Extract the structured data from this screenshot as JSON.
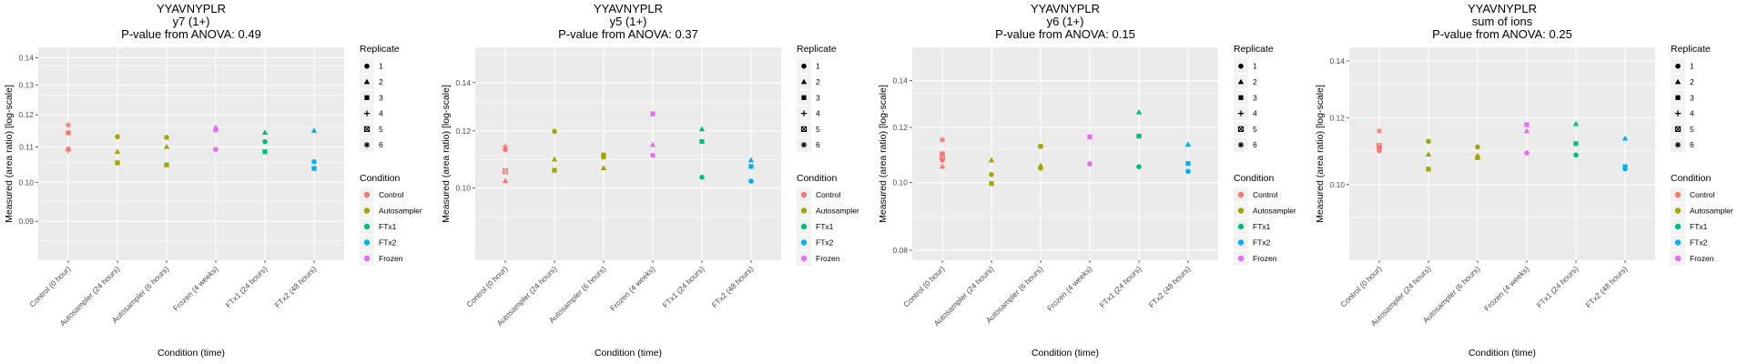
{
  "colors": {
    "Control": "#F8766D",
    "Autosampler": "#A3A500",
    "FTx1": "#00BF7D",
    "FTx2": "#00B0F6",
    "Frozen": "#E76BF3",
    "panel_bg": "#EBEBEB",
    "grid": "#FFFFFF"
  },
  "chart_data": [
    {
      "type": "scatter",
      "title": [
        "YYAVNYPLR",
        "y7 (1+)",
        "P-value from ANOVA: 0.49"
      ],
      "xlabel": "Condition (time)",
      "ylabel": "Measured (area ratio) [log-scale]",
      "yscale": "log",
      "ylim": [
        0.081,
        0.144
      ],
      "yticks": [
        0.09,
        0.1,
        0.11,
        0.12,
        0.13,
        0.14
      ],
      "ytick_labels": [
        "0.09",
        "0.10",
        "0.11",
        "0.12",
        "0.13",
        "0.14"
      ],
      "categories": [
        "Control (0 hour)",
        "Autosampler (24 hours)",
        "Autosampler (6 hours)",
        "Frozen (4 weeks)",
        "FTx1 (24 hours)",
        "FTx2 (48 hours)"
      ],
      "series": [
        {
          "category": "Control (0 hour)",
          "condition": "Control",
          "replicates": [
            6,
            3,
            1,
            4
          ],
          "values": [
            0.1167,
            0.1143,
            0.1094,
            0.1089
          ]
        },
        {
          "category": "Autosampler (24 hours)",
          "condition": "Autosampler",
          "replicates": [
            1,
            2,
            3
          ],
          "values": [
            0.1131,
            0.1086,
            0.1054
          ]
        },
        {
          "category": "Autosampler (6 hours)",
          "condition": "Autosampler",
          "replicates": [
            1,
            2,
            3
          ],
          "values": [
            0.1129,
            0.1101,
            0.1048
          ]
        },
        {
          "category": "Frozen (4 weeks)",
          "condition": "Frozen",
          "replicates": [
            2,
            3,
            1
          ],
          "values": [
            0.116,
            0.1152,
            0.1093
          ]
        },
        {
          "category": "FTx1 (24 hours)",
          "condition": "FTx1",
          "replicates": [
            2,
            1,
            3
          ],
          "values": [
            0.1144,
            0.1116,
            0.1086
          ]
        },
        {
          "category": "FTx2 (48 hours)",
          "condition": "FTx2",
          "replicates": [
            2,
            1,
            3
          ],
          "values": [
            0.115,
            0.1057,
            0.1038
          ]
        }
      ]
    },
    {
      "type": "scatter",
      "title": [
        "YYAVNYPLR",
        "y5 (1+)",
        "P-value from ANOVA: 0.37"
      ],
      "xlabel": "Condition (time)",
      "ylabel": "Measured (area ratio) [log-scale]",
      "yscale": "log",
      "ylim": [
        0.0794,
        0.1567
      ],
      "yticks": [
        0.1,
        0.12,
        0.14
      ],
      "ytick_labels": [
        "0.10",
        "0.12",
        "0.14"
      ],
      "categories": [
        "Control (0 hour)",
        "Autosampler (24 hours)",
        "Autosampler (6 hours)",
        "Frozen (4 weeks)",
        "FTx1 (24 hours)",
        "FTx2 (48 hours)"
      ],
      "series": [
        {
          "category": "Control (0 hour)",
          "condition": "Control",
          "replicates": [
            4,
            1,
            5,
            2
          ],
          "values": [
            0.1142,
            0.1131,
            0.1055,
            0.1023
          ]
        },
        {
          "category": "Autosampler (24 hours)",
          "condition": "Autosampler",
          "replicates": [
            1,
            2,
            3
          ],
          "values": [
            0.1198,
            0.1096,
            0.1058
          ]
        },
        {
          "category": "Autosampler (6 hours)",
          "condition": "Autosampler",
          "replicates": [
            1,
            3,
            2
          ],
          "values": [
            0.1112,
            0.1104,
            0.1066
          ]
        },
        {
          "category": "Frozen (4 weeks)",
          "condition": "Frozen",
          "replicates": [
            3,
            2,
            1
          ],
          "values": [
            0.1267,
            0.1148,
            0.111
          ]
        },
        {
          "category": "FTx1 (24 hours)",
          "condition": "FTx1",
          "replicates": [
            2,
            3,
            1
          ],
          "values": [
            0.1207,
            0.116,
            0.1035
          ]
        },
        {
          "category": "FTx2 (48 hours)",
          "condition": "FTx2",
          "replicates": [
            2,
            3,
            1
          ],
          "values": [
            0.1093,
            0.1071,
            0.1022
          ]
        }
      ]
    },
    {
      "type": "scatter",
      "title": [
        "YYAVNYPLR",
        "y6 (1+)",
        "P-value from ANOVA: 0.15"
      ],
      "xlabel": "Condition (time)",
      "ylabel": "Measured (area ratio) [log-scale]",
      "yscale": "log",
      "ylim": [
        0.0774,
        0.1563
      ],
      "yticks": [
        0.08,
        0.1,
        0.12,
        0.14
      ],
      "ytick_labels": [
        "0.08",
        "0.10",
        "0.12",
        "0.14"
      ],
      "categories": [
        "Control (0 hour)",
        "Autosampler (24 hours)",
        "Autosampler (6 hours)",
        "Frozen (4 weeks)",
        "FTx1 (24 hours)",
        "FTx2 (48 hours)"
      ],
      "series": [
        {
          "category": "Control (0 hour)",
          "condition": "Control",
          "replicates": [
            6,
            3,
            5,
            1,
            2
          ],
          "values": [
            0.1152,
            0.11,
            0.1088,
            0.1077,
            0.1055
          ]
        },
        {
          "category": "Autosampler (24 hours)",
          "condition": "Autosampler",
          "replicates": [
            2,
            1,
            3
          ],
          "values": [
            0.1077,
            0.1027,
            0.0997
          ]
        },
        {
          "category": "Autosampler (6 hours)",
          "condition": "Autosampler",
          "replicates": [
            3,
            2,
            1
          ],
          "values": [
            0.1127,
            0.1058,
            0.1049
          ]
        },
        {
          "category": "Frozen (4 weeks)",
          "condition": "Frozen",
          "replicates": [
            3,
            1
          ],
          "values": [
            0.1163,
            0.1064
          ]
        },
        {
          "category": "FTx1 (24 hours)",
          "condition": "FTx1",
          "replicates": [
            2,
            3,
            1
          ],
          "values": [
            0.1262,
            0.1166,
            0.1054
          ]
        },
        {
          "category": "FTx2 (48 hours)",
          "condition": "FTx2",
          "replicates": [
            2,
            3,
            1
          ],
          "values": [
            0.1135,
            0.1065,
            0.1038
          ]
        }
      ]
    },
    {
      "type": "scatter",
      "title": [
        "YYAVNYPLR",
        "sum of ions",
        "P-value from ANOVA: 0.25"
      ],
      "xlabel": "Condition (time)",
      "ylabel": "Measured (area ratio) [log-scale]",
      "yscale": "log",
      "ylim": [
        0.0814,
        0.1453
      ],
      "yticks": [
        0.1,
        0.12,
        0.14
      ],
      "ytick_labels": [
        "0.10",
        "0.12",
        "0.14"
      ],
      "categories": [
        "Control (0 hour)",
        "Autosampler (24 hours)",
        "Autosampler (6 hours)",
        "Frozen (4 weeks)",
        "FTx1 (24 hours)",
        "FTx2 (48 hours)"
      ],
      "series": [
        {
          "category": "Control (0 hour)",
          "condition": "Control",
          "replicates": [
            6,
            5,
            3,
            1
          ],
          "values": [
            0.1157,
            0.1111,
            0.1106,
            0.1097
          ]
        },
        {
          "category": "Autosampler (24 hours)",
          "condition": "Autosampler",
          "replicates": [
            1,
            2,
            3
          ],
          "values": [
            0.1125,
            0.1086,
            0.1043
          ]
        },
        {
          "category": "Autosampler (6 hours)",
          "condition": "Autosampler",
          "replicates": [
            1,
            2,
            3
          ],
          "values": [
            0.1108,
            0.1082,
            0.1076
          ]
        },
        {
          "category": "Frozen (4 weeks)",
          "condition": "Frozen",
          "replicates": [
            3,
            2,
            1
          ],
          "values": [
            0.1177,
            0.1157,
            0.109
          ]
        },
        {
          "category": "FTx1 (24 hours)",
          "condition": "FTx1",
          "replicates": [
            2,
            3,
            1
          ],
          "values": [
            0.118,
            0.1118,
            0.1084
          ]
        },
        {
          "category": "FTx2 (48 hours)",
          "condition": "FTx2",
          "replicates": [
            2,
            3,
            1
          ],
          "values": [
            0.1134,
            0.105,
            0.1044
          ]
        }
      ]
    }
  ],
  "legend": {
    "placement": "right",
    "replicate_title": "Replicate",
    "replicates": [
      "1",
      "2",
      "3",
      "4",
      "5",
      "6"
    ],
    "condition_title": "Condition",
    "conditions": [
      "Control",
      "Autosampler",
      "FTx1",
      "FTx2",
      "Frozen"
    ]
  }
}
